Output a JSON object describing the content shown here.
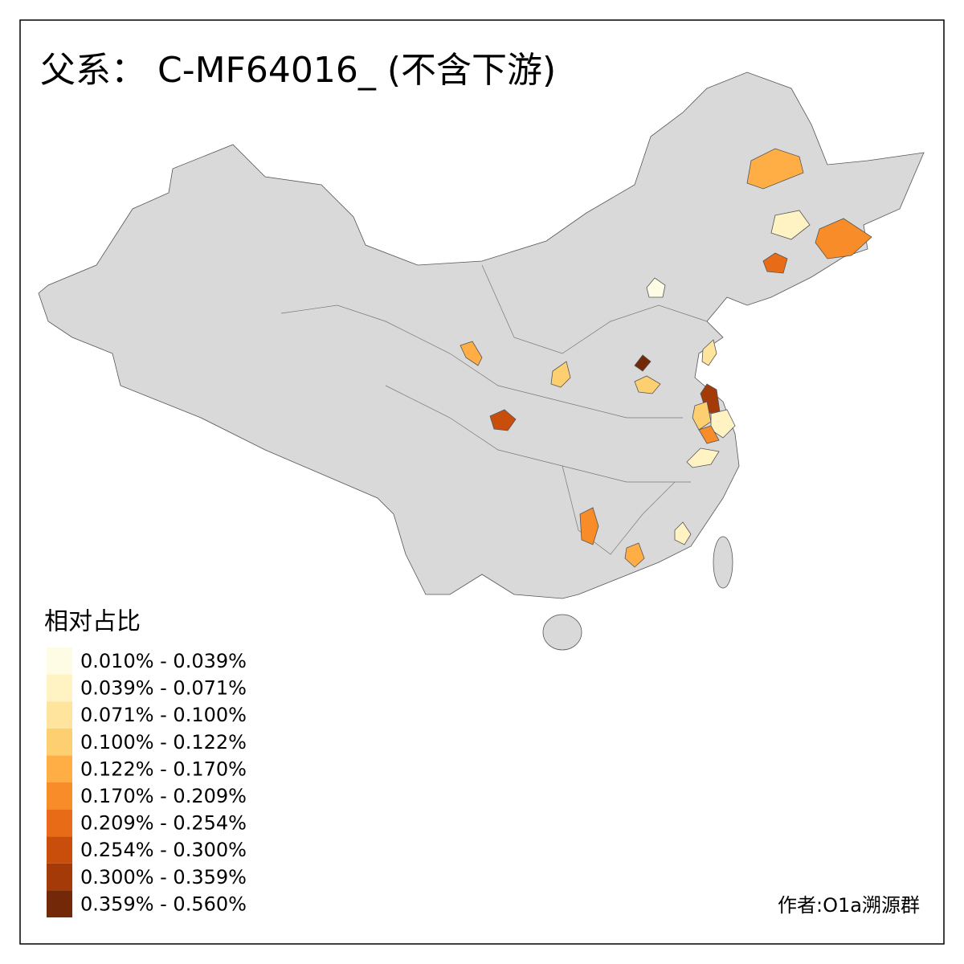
{
  "title": "父系： C-MF64016_ (不含下游)",
  "legend": {
    "title": "相对占比",
    "items": [
      {
        "label": "0.010% - 0.039%",
        "color": "#fffce6"
      },
      {
        "label": "0.039% - 0.071%",
        "color": "#fff3c4"
      },
      {
        "label": "0.071% - 0.100%",
        "color": "#fee49c"
      },
      {
        "label": "0.100% - 0.122%",
        "color": "#fecf70"
      },
      {
        "label": "0.122% - 0.170%",
        "color": "#feae45"
      },
      {
        "label": "0.170% - 0.209%",
        "color": "#f78c29"
      },
      {
        "label": "0.209% - 0.254%",
        "color": "#e86c17"
      },
      {
        "label": "0.254% - 0.300%",
        "color": "#c94e0c"
      },
      {
        "label": "0.300% - 0.359%",
        "color": "#a33a07"
      },
      {
        "label": "0.359% - 0.560%",
        "color": "#732807"
      }
    ]
  },
  "author": "作者:O1a溯源群"
}
